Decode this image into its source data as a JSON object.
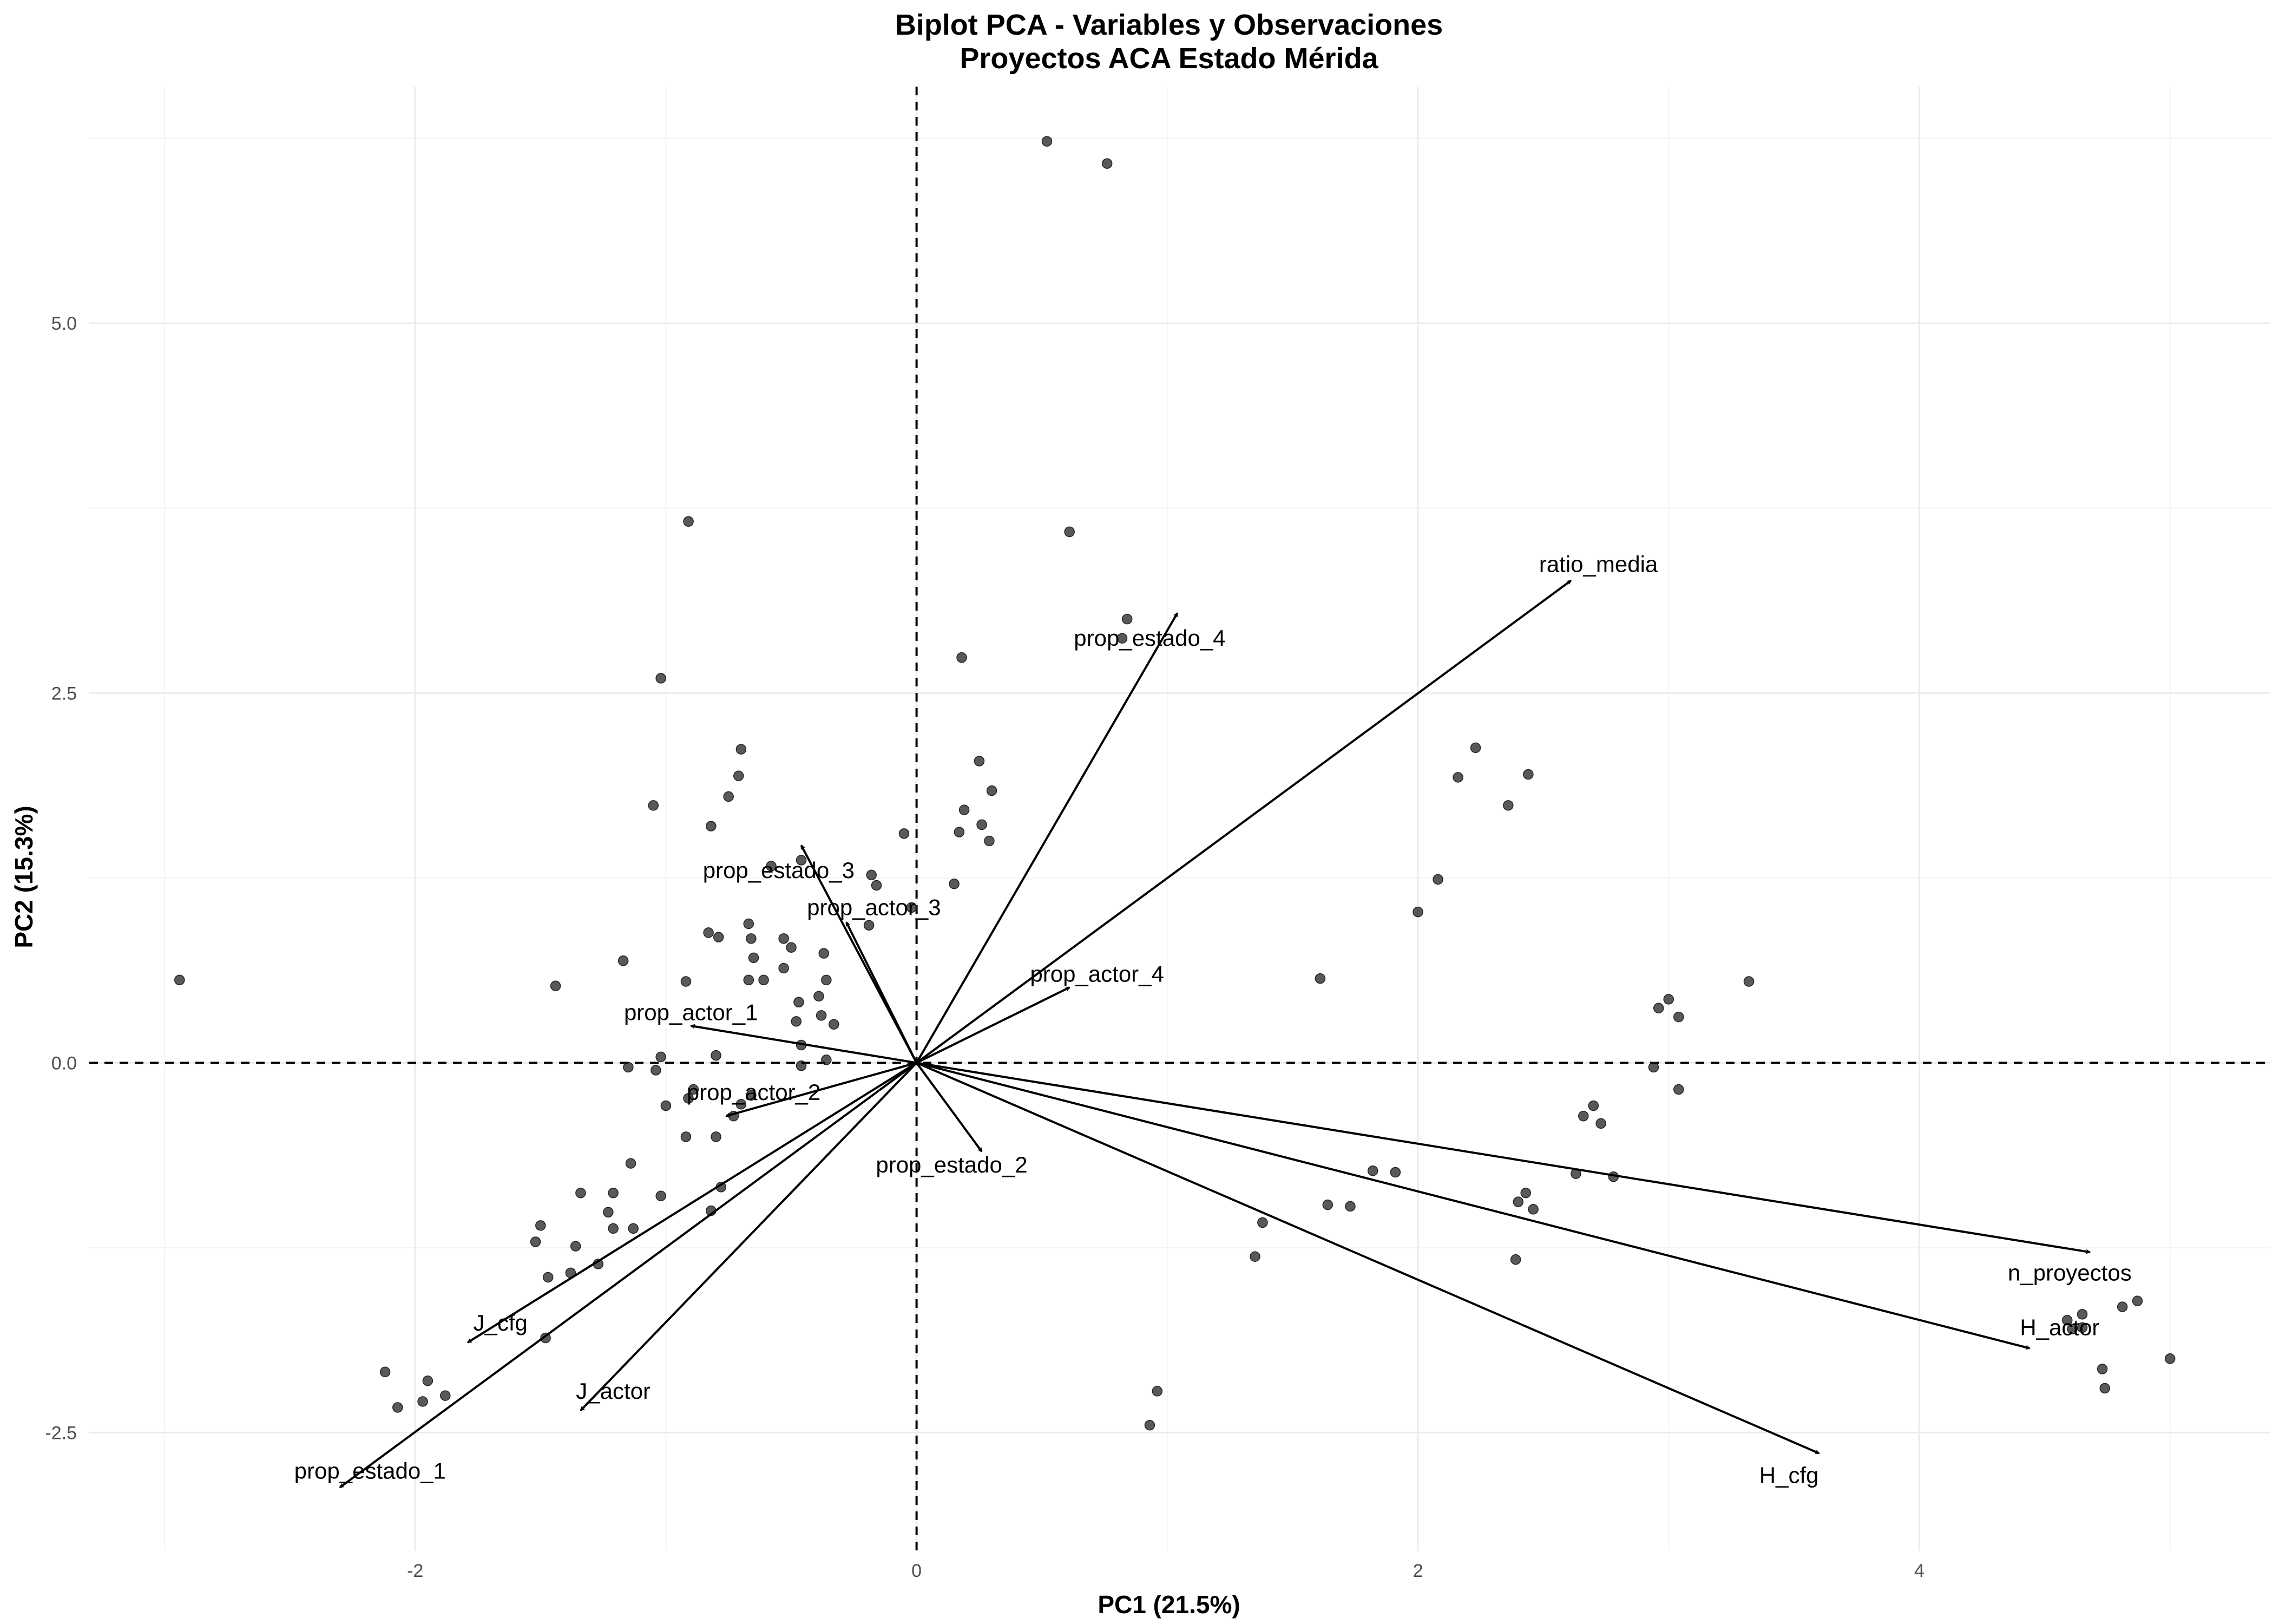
{
  "chart_data": {
    "type": "scatter",
    "title": "Biplot PCA - Variables y Observaciones",
    "subtitle": "Proyectos ACA Estado Mérida",
    "xlabel": "PC1 (21.5%)",
    "ylabel": "PC2 (15.3%)",
    "xlim": [
      -3.3,
      5.4
    ],
    "ylim": [
      -3.3,
      6.6
    ],
    "x_ticks": [
      -2,
      0,
      2,
      4
    ],
    "x_tick_labels": [
      "-2",
      "0",
      "2",
      "4"
    ],
    "y_ticks": [
      -2.5,
      0,
      2.5,
      5
    ],
    "y_tick_labels": [
      "-2.5",
      "0.0",
      "2.5",
      "5.0"
    ],
    "grid": true,
    "legend": "none",
    "reference_lines": {
      "x": 0,
      "y": 0,
      "style": "dashed"
    },
    "loadings": [
      {
        "name": "ratio_media",
        "x": 2.61,
        "y": 3.26,
        "label": "ratio_media",
        "label_x": 2.72,
        "label_y": 3.37
      },
      {
        "name": "prop_estado_4",
        "x": 1.04,
        "y": 3.04,
        "label": "prop_estado_4",
        "label_x": 0.93,
        "label_y": 2.87
      },
      {
        "name": "prop_estado_3",
        "x": -0.46,
        "y": 1.47,
        "label": "prop_estado_3",
        "label_x": -0.55,
        "label_y": 1.3
      },
      {
        "name": "prop_actor_3",
        "x": -0.28,
        "y": 0.95,
        "label": "prop_actor_3",
        "label_x": -0.17,
        "label_y": 1.05
      },
      {
        "name": "prop_actor_4",
        "x": 0.61,
        "y": 0.51,
        "label": "prop_actor_4",
        "label_x": 0.72,
        "label_y": 0.6
      },
      {
        "name": "prop_actor_1",
        "x": -0.9,
        "y": 0.25,
        "label": "prop_actor_1",
        "label_x": -0.9,
        "label_y": 0.34
      },
      {
        "name": "prop_actor_2",
        "x": -0.76,
        "y": -0.36,
        "label": "prop_actor_2",
        "label_x": -0.65,
        "label_y": -0.2
      },
      {
        "name": "prop_estado_2",
        "x": 0.26,
        "y": -0.6,
        "label": "prop_estado_2",
        "label_x": 0.14,
        "label_y": -0.69
      },
      {
        "name": "J_cfg",
        "x": -1.79,
        "y": -1.89,
        "label": "J_cfg",
        "label_x": -1.66,
        "label_y": -1.76
      },
      {
        "name": "J_actor",
        "x": -1.34,
        "y": -2.35,
        "label": "J_actor",
        "label_x": -1.21,
        "label_y": -2.22
      },
      {
        "name": "prop_estado_1",
        "x": -2.3,
        "y": -2.87,
        "label": "prop_estado_1",
        "label_x": -2.18,
        "label_y": -2.76
      },
      {
        "name": "n_proyectos",
        "x": 4.68,
        "y": -1.28,
        "label": "n_proyectos",
        "label_x": 4.6,
        "label_y": -1.42
      },
      {
        "name": "H_actor",
        "x": 4.44,
        "y": -1.93,
        "label": "H_actor",
        "label_x": 4.56,
        "label_y": -1.79
      },
      {
        "name": "H_cfg",
        "x": 3.6,
        "y": -2.64,
        "label": "H_cfg",
        "label_x": 3.48,
        "label_y": -2.79
      }
    ],
    "observations": [
      [
        0.52,
        6.23
      ],
      [
        0.76,
        6.08
      ],
      [
        0.61,
        3.59
      ],
      [
        -0.91,
        3.66
      ],
      [
        0.84,
        3.0
      ],
      [
        0.82,
        2.87
      ],
      [
        0.18,
        2.74
      ],
      [
        -1.02,
        2.6
      ],
      [
        -0.7,
        2.12
      ],
      [
        -0.71,
        1.94
      ],
      [
        -0.75,
        1.8
      ],
      [
        -1.05,
        1.74
      ],
      [
        -0.82,
        1.6
      ],
      [
        0.25,
        2.04
      ],
      [
        0.3,
        1.84
      ],
      [
        0.19,
        1.71
      ],
      [
        0.17,
        1.56
      ],
      [
        0.26,
        1.61
      ],
      [
        0.29,
        1.5
      ],
      [
        -0.05,
        1.55
      ],
      [
        0.15,
        1.21
      ],
      [
        -0.18,
        1.27
      ],
      [
        -0.16,
        1.2
      ],
      [
        -0.02,
        1.05
      ],
      [
        -0.46,
        1.37
      ],
      [
        -0.58,
        1.33
      ],
      [
        -0.67,
        0.94
      ],
      [
        -0.66,
        0.84
      ],
      [
        -0.83,
        0.88
      ],
      [
        -0.79,
        0.85
      ],
      [
        -0.53,
        0.84
      ],
      [
        -0.5,
        0.78
      ],
      [
        -0.37,
        0.74
      ],
      [
        -0.65,
        0.71
      ],
      [
        -0.53,
        0.64
      ],
      [
        -0.19,
        0.93
      ],
      [
        -1.17,
        0.69
      ],
      [
        -0.92,
        0.55
      ],
      [
        -0.67,
        0.56
      ],
      [
        -0.61,
        0.56
      ],
      [
        -0.36,
        0.56
      ],
      [
        -0.39,
        0.45
      ],
      [
        -0.47,
        0.41
      ],
      [
        -0.48,
        0.28
      ],
      [
        -0.38,
        0.32
      ],
      [
        -0.33,
        0.26
      ],
      [
        -1.44,
        0.52
      ],
      [
        -2.94,
        0.56
      ],
      [
        -0.46,
        0.12
      ],
      [
        -0.8,
        0.05
      ],
      [
        -0.36,
        0.02
      ],
      [
        -1.02,
        0.04
      ],
      [
        -0.46,
        -0.02
      ],
      [
        -1.15,
        -0.03
      ],
      [
        -1.04,
        -0.05
      ],
      [
        -0.89,
        -0.18
      ],
      [
        -0.66,
        -0.22
      ],
      [
        -0.7,
        -0.28
      ],
      [
        -1.0,
        -0.29
      ],
      [
        -0.91,
        -0.24
      ],
      [
        -0.73,
        -0.36
      ],
      [
        -0.92,
        -0.5
      ],
      [
        -0.8,
        -0.5
      ],
      [
        -1.14,
        -0.68
      ],
      [
        -1.21,
        -0.88
      ],
      [
        -1.34,
        -0.88
      ],
      [
        -1.23,
        -1.01
      ],
      [
        -1.21,
        -1.12
      ],
      [
        -1.13,
        -1.12
      ],
      [
        -1.02,
        -0.9
      ],
      [
        -0.82,
        -1.0
      ],
      [
        -0.78,
        -0.84
      ],
      [
        -1.5,
        -1.1
      ],
      [
        -1.52,
        -1.21
      ],
      [
        -1.36,
        -1.24
      ],
      [
        -1.27,
        -1.36
      ],
      [
        -1.38,
        -1.42
      ],
      [
        -1.47,
        -1.45
      ],
      [
        -1.48,
        -1.86
      ],
      [
        -2.12,
        -2.09
      ],
      [
        -1.95,
        -2.15
      ],
      [
        -1.88,
        -2.25
      ],
      [
        -1.97,
        -2.29
      ],
      [
        -2.07,
        -2.33
      ],
      [
        1.61,
        0.57
      ],
      [
        2.0,
        1.02
      ],
      [
        2.08,
        1.24
      ],
      [
        2.16,
        1.93
      ],
      [
        2.23,
        2.13
      ],
      [
        2.36,
        1.74
      ],
      [
        2.44,
        1.95
      ],
      [
        3.32,
        0.55
      ],
      [
        3.0,
        0.43
      ],
      [
        2.96,
        0.37
      ],
      [
        3.04,
        0.31
      ],
      [
        2.94,
        -0.03
      ],
      [
        3.04,
        -0.18
      ],
      [
        2.7,
        -0.29
      ],
      [
        2.66,
        -0.36
      ],
      [
        2.73,
        -0.41
      ],
      [
        2.63,
        -0.75
      ],
      [
        2.78,
        -0.77
      ],
      [
        1.82,
        -0.73
      ],
      [
        1.91,
        -0.74
      ],
      [
        1.64,
        -0.96
      ],
      [
        1.73,
        -0.97
      ],
      [
        2.43,
        -0.88
      ],
      [
        2.4,
        -0.94
      ],
      [
        2.46,
        -0.99
      ],
      [
        1.38,
        -1.08
      ],
      [
        1.35,
        -1.31
      ],
      [
        2.39,
        -1.33
      ],
      [
        0.96,
        -2.22
      ],
      [
        0.93,
        -2.45
      ],
      [
        4.59,
        -1.74
      ],
      [
        4.65,
        -1.7
      ],
      [
        4.61,
        -1.8
      ],
      [
        4.65,
        -1.79
      ],
      [
        4.81,
        -1.65
      ],
      [
        4.87,
        -1.61
      ],
      [
        4.73,
        -2.07
      ],
      [
        4.74,
        -2.2
      ],
      [
        5.0,
        -2.0
      ]
    ]
  }
}
